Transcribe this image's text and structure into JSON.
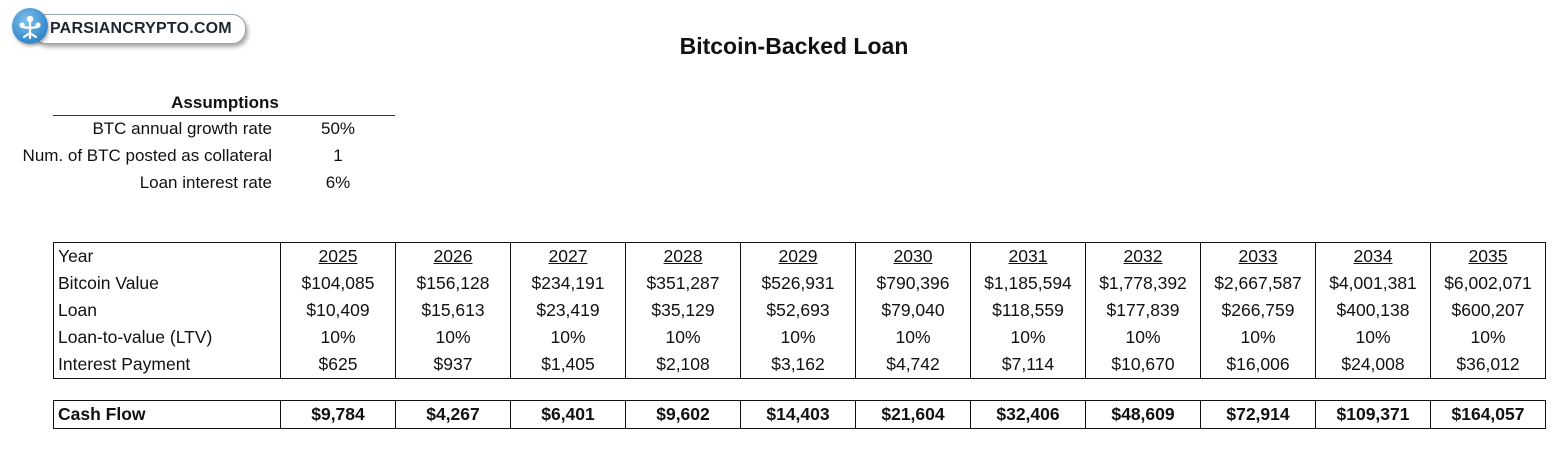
{
  "logo": {
    "text": "PARSIANCRYPTO.COM"
  },
  "title": "Bitcoin-Backed Loan",
  "assumptions": {
    "heading": "Assumptions",
    "rows": [
      {
        "label": "BTC annual growth rate",
        "value": "50%"
      },
      {
        "label": "Num. of BTC posted as collateral",
        "value": "1"
      },
      {
        "label": "Loan interest rate",
        "value": "6%"
      }
    ]
  },
  "table": {
    "year_label": "Year",
    "years": [
      "2025",
      "2026",
      "2027",
      "2028",
      "2029",
      "2030",
      "2031",
      "2032",
      "2033",
      "2034",
      "2035"
    ],
    "rows": [
      {
        "label": "Bitcoin Value",
        "values": [
          "$104,085",
          "$156,128",
          "$234,191",
          "$351,287",
          "$526,931",
          "$790,396",
          "$1,185,594",
          "$1,778,392",
          "$2,667,587",
          "$4,001,381",
          "$6,002,071"
        ]
      },
      {
        "label": "Loan",
        "values": [
          "$10,409",
          "$15,613",
          "$23,419",
          "$35,129",
          "$52,693",
          "$79,040",
          "$118,559",
          "$177,839",
          "$266,759",
          "$400,138",
          "$600,207"
        ]
      },
      {
        "label": "Loan-to-value (LTV)",
        "values": [
          "10%",
          "10%",
          "10%",
          "10%",
          "10%",
          "10%",
          "10%",
          "10%",
          "10%",
          "10%",
          "10%"
        ]
      },
      {
        "label": "Interest Payment",
        "values": [
          "$625",
          "$937",
          "$1,405",
          "$2,108",
          "$3,162",
          "$4,742",
          "$7,114",
          "$10,670",
          "$16,006",
          "$24,008",
          "$36,012"
        ]
      }
    ]
  },
  "cash_flow": {
    "label": "Cash Flow",
    "values": [
      "$9,784",
      "$4,267",
      "$6,401",
      "$9,602",
      "$14,403",
      "$21,604",
      "$32,406",
      "$48,609",
      "$72,914",
      "$109,371",
      "$164,057"
    ]
  }
}
